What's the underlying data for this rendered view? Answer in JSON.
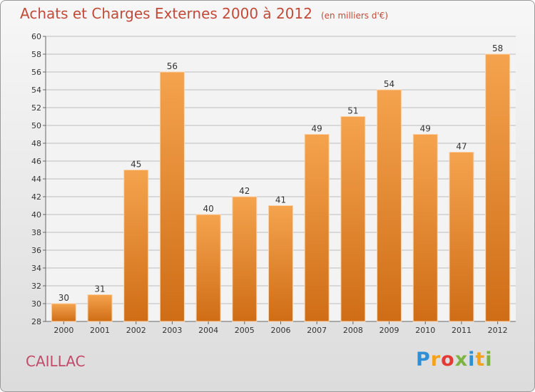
{
  "header": {
    "title": "Achats et Charges Externes 2000 à 2012",
    "unit": "(en milliers d'€)"
  },
  "footer": {
    "commune": "CAILLAC",
    "logo_letters": [
      "P",
      "r",
      "o",
      "x",
      "i",
      "t",
      "i"
    ],
    "logo_colors": [
      "#2f8fd6",
      "#f4a21b",
      "#e53935",
      "#7cb342",
      "#2f8fd6",
      "#f4a21b",
      "#7cb342"
    ]
  },
  "colors": {
    "bar_top": "#f5a34e",
    "bar_bottom": "#cf6d16",
    "grid": "#bdbdbd",
    "axis_text": "#333333",
    "title": "#c24a38",
    "commune": "#c24a6a"
  },
  "chart_data": {
    "type": "bar",
    "title": "Achats et Charges Externes 2000 à 2012",
    "subtitle": "(en milliers d'€)",
    "xlabel": "",
    "ylabel": "",
    "categories": [
      "2000",
      "2001",
      "2002",
      "2003",
      "2004",
      "2005",
      "2006",
      "2007",
      "2008",
      "2009",
      "2010",
      "2011",
      "2012"
    ],
    "values": [
      30,
      31,
      45,
      56,
      40,
      42,
      41,
      49,
      51,
      54,
      49,
      47,
      58
    ],
    "ylim": [
      28,
      60
    ],
    "yticks": [
      28,
      30,
      32,
      34,
      36,
      38,
      40,
      42,
      44,
      46,
      48,
      50,
      52,
      54,
      56,
      58,
      60
    ],
    "grid": true,
    "legend": "none"
  }
}
